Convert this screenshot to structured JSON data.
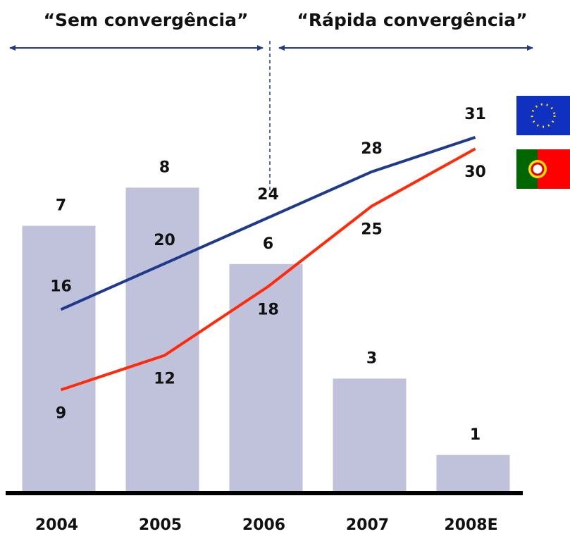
{
  "chart_data": {
    "type": "bar",
    "annotations": [
      "“Sem convergência”",
      "“Rápida convergência”"
    ],
    "categories": [
      "2004",
      "2005",
      "2006",
      "2007",
      "2008E"
    ],
    "ylim": [
      0,
      10.7
    ],
    "y2lim": [
      0,
      35.6
    ],
    "series": [
      {
        "type": "bar",
        "color": "#c0c2dc",
        "values": [
          7,
          8,
          6,
          3,
          1
        ]
      },
      {
        "type": "line",
        "axis": "y2",
        "color": "#1f3a8a",
        "values": [
          16,
          20,
          24,
          28,
          31
        ]
      },
      {
        "type": "line",
        "axis": "y2",
        "color": "#ff2a0a",
        "values": [
          9,
          12,
          18,
          25,
          30
        ]
      }
    ]
  }
}
